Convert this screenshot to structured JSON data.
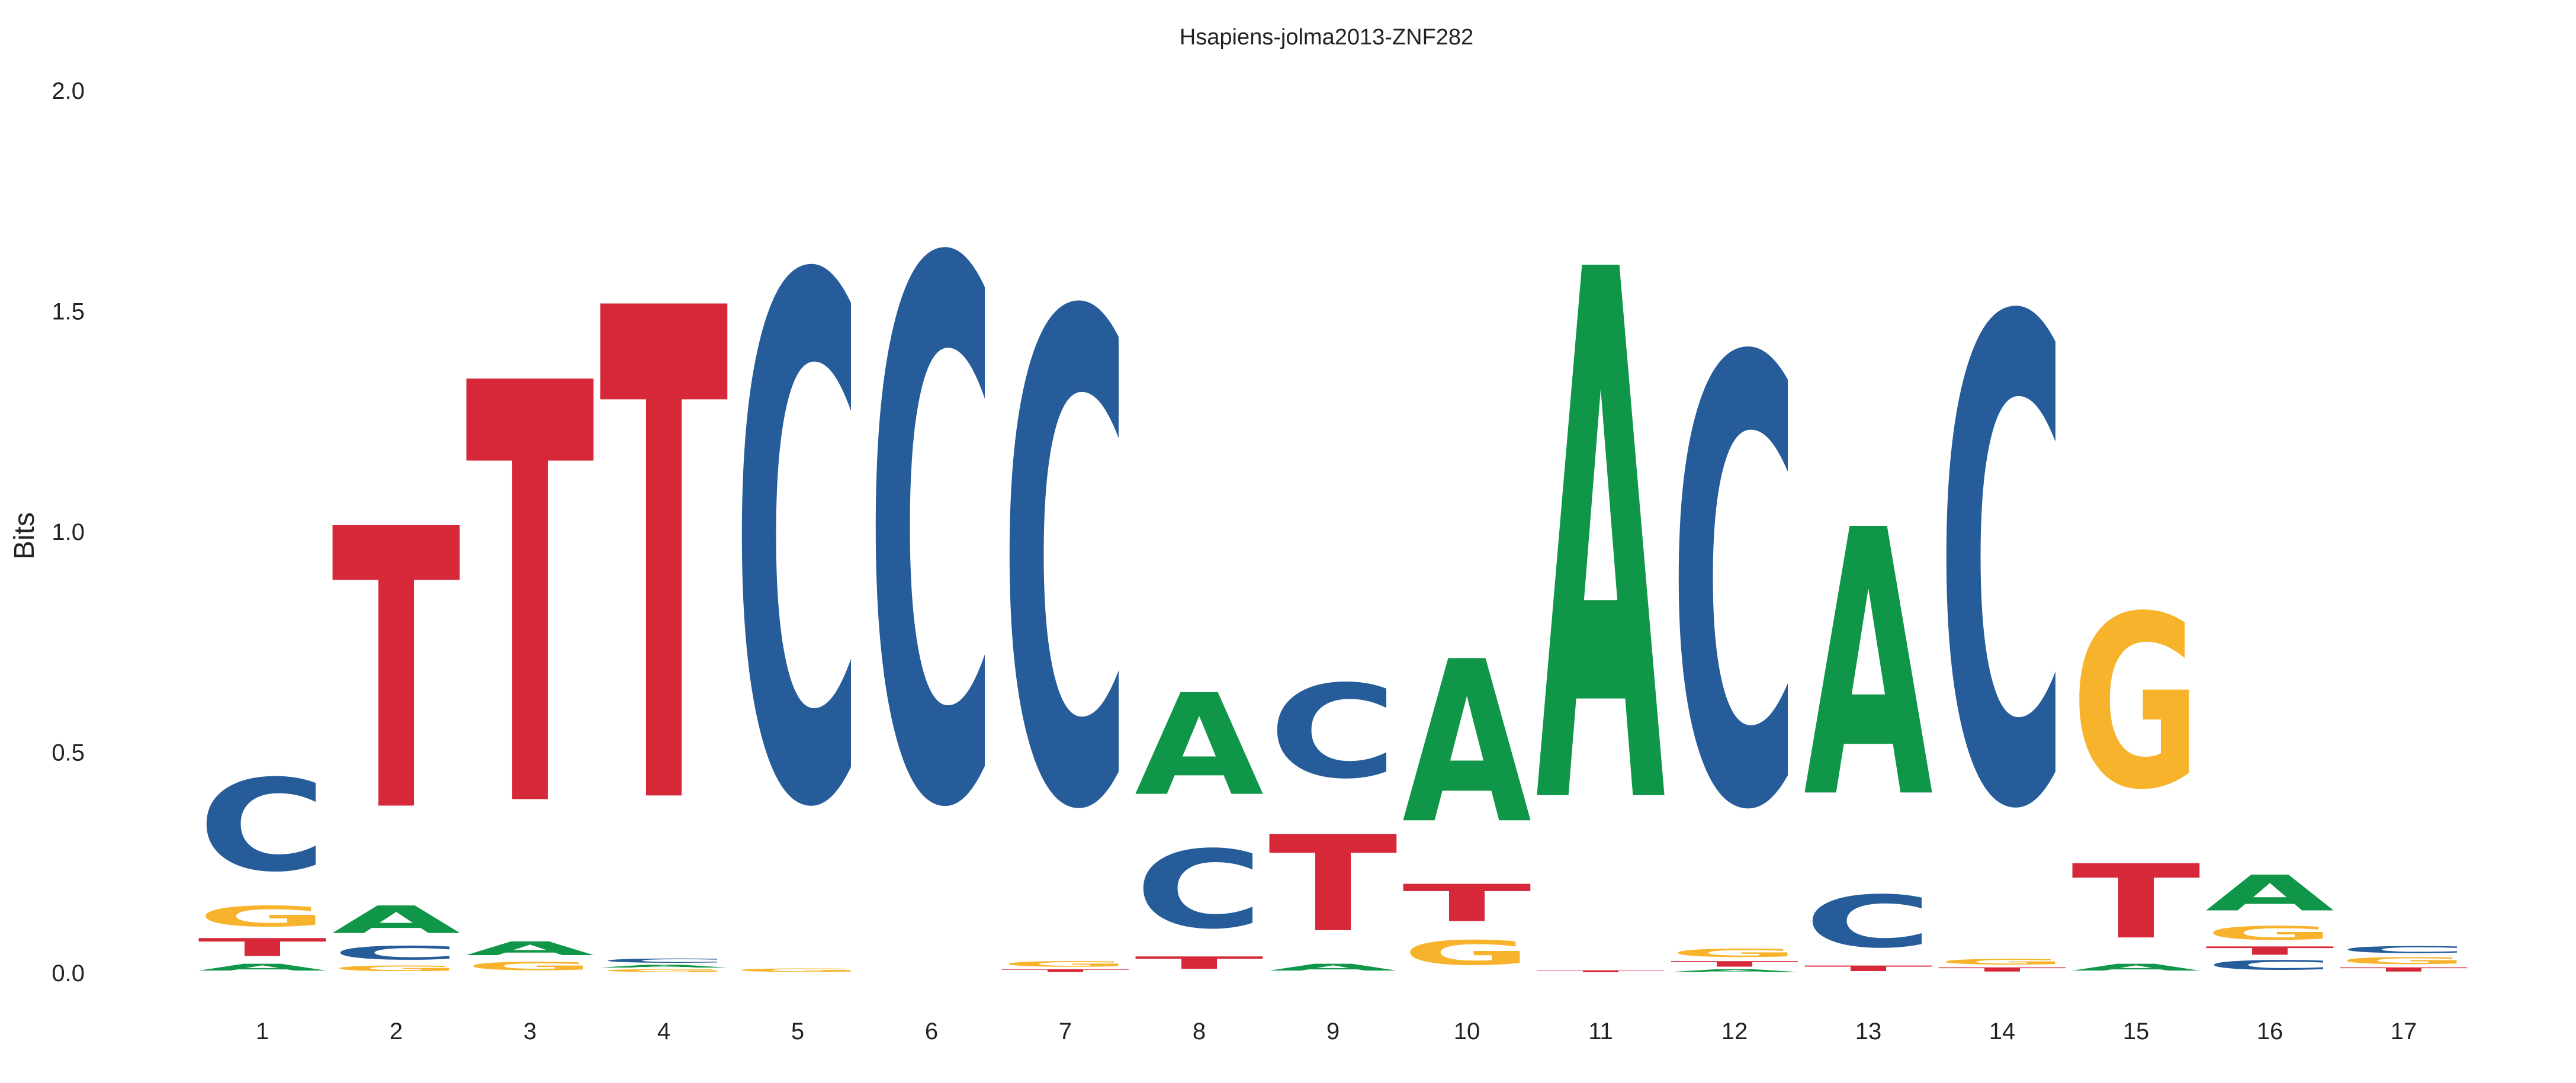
{
  "chart_data": {
    "type": "sequence-logo",
    "title": "Hsapiens-jolma2013-ZNF282",
    "xlabel": "",
    "ylabel": "Bits",
    "ylim": [
      0,
      2.0
    ],
    "yticks": [
      "0.0",
      "0.5",
      "1.0",
      "1.5",
      "2.0"
    ],
    "positions": [
      "1",
      "2",
      "3",
      "4",
      "5",
      "6",
      "7",
      "8",
      "9",
      "10",
      "11",
      "12",
      "13",
      "14",
      "15",
      "16",
      "17"
    ],
    "colors": {
      "A": "#109648",
      "C": "#255C99",
      "G": "#F7B32B",
      "T": "#D62839"
    },
    "stacks": [
      [
        [
          "A",
          0.025
        ],
        [
          "T",
          0.065
        ],
        [
          "G",
          0.075
        ],
        [
          "C",
          0.335
        ]
      ],
      [
        [
          "G",
          0.02
        ],
        [
          "C",
          0.05
        ],
        [
          "A",
          0.1
        ],
        [
          "T",
          1.02
        ]
      ],
      [
        [
          "G",
          0.03
        ],
        [
          "A",
          0.05
        ],
        [
          "T",
          1.53
        ]
      ],
      [
        [
          "G",
          0.01
        ],
        [
          "A",
          0.01
        ],
        [
          "C",
          0.015
        ],
        [
          "T",
          1.79
        ]
      ],
      [
        [
          "G",
          0.012
        ],
        [
          "C",
          1.9
        ]
      ],
      [
        [
          "C",
          1.96
        ]
      ],
      [
        [
          "T",
          0.01
        ],
        [
          "G",
          0.02
        ],
        [
          "C",
          1.78
        ]
      ],
      [
        [
          "T",
          0.045
        ],
        [
          "C",
          0.285
        ],
        [
          "A",
          0.37
        ]
      ],
      [
        [
          "A",
          0.025
        ],
        [
          "T",
          0.35
        ],
        [
          "C",
          0.34
        ]
      ],
      [
        [
          "G",
          0.09
        ],
        [
          "T",
          0.135
        ],
        [
          "A",
          0.59
        ]
      ],
      [
        [
          "T",
          0.007
        ],
        [
          "A",
          1.93
        ]
      ],
      [
        [
          "A",
          0.01
        ],
        [
          "T",
          0.02
        ],
        [
          "G",
          0.03
        ],
        [
          "C",
          1.62
        ]
      ],
      [
        [
          "T",
          0.02
        ],
        [
          "C",
          0.19
        ],
        [
          "A",
          0.97
        ]
      ],
      [
        [
          "T",
          0.015
        ],
        [
          "G",
          0.02
        ],
        [
          "C",
          1.76
        ]
      ],
      [
        [
          "A",
          0.025
        ],
        [
          "T",
          0.27
        ],
        [
          "G",
          0.63
        ]
      ],
      [
        [
          "C",
          0.035
        ],
        [
          "T",
          0.03
        ],
        [
          "G",
          0.05
        ],
        [
          "A",
          0.13
        ]
      ],
      [
        [
          "T",
          0.015
        ],
        [
          "G",
          0.025
        ],
        [
          "C",
          0.025
        ]
      ]
    ]
  }
}
